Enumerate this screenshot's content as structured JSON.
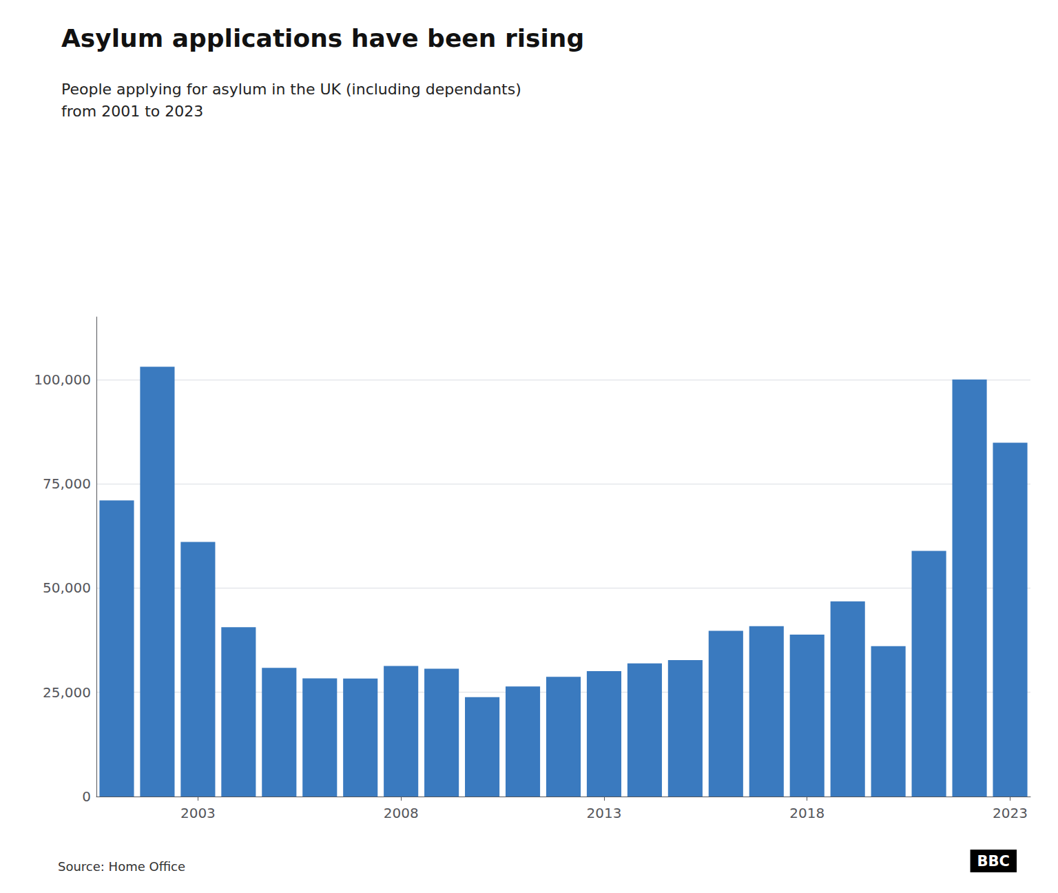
{
  "chart_data": {
    "type": "bar",
    "title": "Asylum applications have been rising",
    "subtitle": "People applying for asylum in the UK (including dependants)\nfrom 2001 to 2023",
    "source": "Source: Home Office",
    "annotations": [
      "BBC"
    ],
    "categories": [
      null,
      null,
      "2003",
      null,
      null,
      null,
      null,
      "2008",
      null,
      null,
      null,
      null,
      "2013",
      null,
      null,
      null,
      null,
      "2018",
      null,
      null,
      null,
      null,
      "2023"
    ],
    "values": [
      71025,
      103081,
      61050,
      40625,
      30840,
      28320,
      28300,
      31320,
      30650,
      23842,
      26405,
      28723,
      30088,
      31945,
      32733,
      39737,
      40835,
      38831,
      46820,
      36041,
      58884,
      100000,
      84850
    ],
    "color": "#3a7abf",
    "ylim": [
      0,
      115000
    ],
    "yticks": [
      0,
      {
        "value": 25000,
        "label": "25,000"
      },
      {
        "value": 50000,
        "label": "50,000"
      },
      {
        "value": 75000,
        "label": "75,000"
      },
      {
        "value": 100000,
        "label": "100,000"
      }
    ],
    "grid": true
  }
}
